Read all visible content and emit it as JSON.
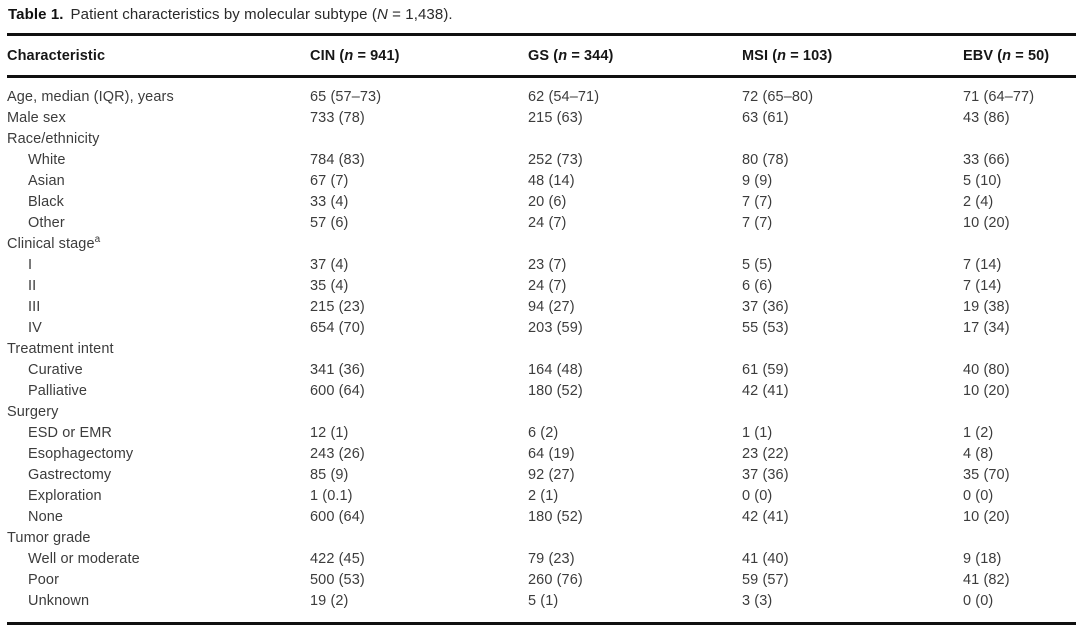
{
  "caption": {
    "label": "Table 1.",
    "text": "Patient characteristics by molecular subtype (",
    "n": "N",
    "rest": " = 1,438)."
  },
  "columns": [
    {
      "label": "Characteristic"
    },
    {
      "pre": "CIN (",
      "n": "n",
      "rest": " = 941)"
    },
    {
      "pre": "GS (",
      "n": "n",
      "rest": " = 344)"
    },
    {
      "pre": "MSI (",
      "n": "n",
      "rest": " = 103)"
    },
    {
      "pre": "EBV (",
      "n": "n",
      "rest": " = 50)"
    }
  ],
  "rows": [
    {
      "label": "Age, median (IQR), years",
      "indent": 0,
      "sup": "",
      "values": [
        "65 (57–73)",
        "62 (54–71)",
        "72 (65–80)",
        "71 (64–77)"
      ]
    },
    {
      "label": "Male sex",
      "indent": 0,
      "sup": "",
      "values": [
        "733 (78)",
        "215 (63)",
        "63 (61)",
        "43 (86)"
      ]
    },
    {
      "label": "Race/ethnicity",
      "indent": 0,
      "sup": "",
      "values": [
        "",
        "",
        "",
        ""
      ]
    },
    {
      "label": "White",
      "indent": 1,
      "sup": "",
      "values": [
        "784 (83)",
        "252 (73)",
        "80 (78)",
        "33 (66)"
      ]
    },
    {
      "label": "Asian",
      "indent": 1,
      "sup": "",
      "values": [
        "67 (7)",
        "48 (14)",
        "9 (9)",
        "5 (10)"
      ]
    },
    {
      "label": "Black",
      "indent": 1,
      "sup": "",
      "values": [
        "33 (4)",
        "20 (6)",
        "7 (7)",
        "2 (4)"
      ]
    },
    {
      "label": "Other",
      "indent": 1,
      "sup": "",
      "values": [
        "57 (6)",
        "24 (7)",
        "7 (7)",
        "10 (20)"
      ]
    },
    {
      "label": "Clinical stage",
      "indent": 0,
      "sup": "a",
      "values": [
        "",
        "",
        "",
        ""
      ]
    },
    {
      "label": "I",
      "indent": 1,
      "sup": "",
      "values": [
        "37 (4)",
        "23 (7)",
        "5 (5)",
        "7 (14)"
      ]
    },
    {
      "label": "II",
      "indent": 1,
      "sup": "",
      "values": [
        "35 (4)",
        "24 (7)",
        "6 (6)",
        "7 (14)"
      ]
    },
    {
      "label": "III",
      "indent": 1,
      "sup": "",
      "values": [
        "215 (23)",
        "94 (27)",
        "37 (36)",
        "19 (38)"
      ]
    },
    {
      "label": "IV",
      "indent": 1,
      "sup": "",
      "values": [
        "654 (70)",
        "203 (59)",
        "55 (53)",
        "17 (34)"
      ]
    },
    {
      "label": "Treatment intent",
      "indent": 0,
      "sup": "",
      "values": [
        "",
        "",
        "",
        ""
      ]
    },
    {
      "label": "Curative",
      "indent": 1,
      "sup": "",
      "values": [
        "341 (36)",
        "164 (48)",
        "61 (59)",
        "40 (80)"
      ]
    },
    {
      "label": "Palliative",
      "indent": 1,
      "sup": "",
      "values": [
        "600 (64)",
        "180 (52)",
        "42 (41)",
        "10 (20)"
      ]
    },
    {
      "label": "Surgery",
      "indent": 0,
      "sup": "",
      "values": [
        "",
        "",
        "",
        ""
      ]
    },
    {
      "label": "ESD or EMR",
      "indent": 1,
      "sup": "",
      "values": [
        "12 (1)",
        "6 (2)",
        "1 (1)",
        "1 (2)"
      ]
    },
    {
      "label": "Esophagectomy",
      "indent": 1,
      "sup": "",
      "values": [
        "243 (26)",
        "64 (19)",
        "23 (22)",
        "4 (8)"
      ]
    },
    {
      "label": "Gastrectomy",
      "indent": 1,
      "sup": "",
      "values": [
        "85 (9)",
        "92 (27)",
        "37 (36)",
        "35 (70)"
      ]
    },
    {
      "label": "Exploration",
      "indent": 1,
      "sup": "",
      "values": [
        "1 (0.1)",
        "2 (1)",
        "0 (0)",
        "0 (0)"
      ]
    },
    {
      "label": "None",
      "indent": 1,
      "sup": "",
      "values": [
        "600 (64)",
        "180 (52)",
        "42 (41)",
        "10 (20)"
      ]
    },
    {
      "label": "Tumor grade",
      "indent": 0,
      "sup": "",
      "values": [
        "",
        "",
        "",
        ""
      ]
    },
    {
      "label": "Well or moderate",
      "indent": 1,
      "sup": "",
      "values": [
        "422 (45)",
        "79 (23)",
        "41 (40)",
        "9 (18)"
      ]
    },
    {
      "label": "Poor",
      "indent": 1,
      "sup": "",
      "values": [
        "500 (53)",
        "260 (76)",
        "59 (57)",
        "41 (82)"
      ]
    },
    {
      "label": "Unknown",
      "indent": 1,
      "sup": "",
      "values": [
        "19 (2)",
        "5 (1)",
        "3 (3)",
        "0 (0)"
      ]
    }
  ],
  "colors": {
    "rule": "#101010",
    "header_text": "#161616",
    "body_text": "#3c3c3c",
    "background": "#ffffff"
  }
}
